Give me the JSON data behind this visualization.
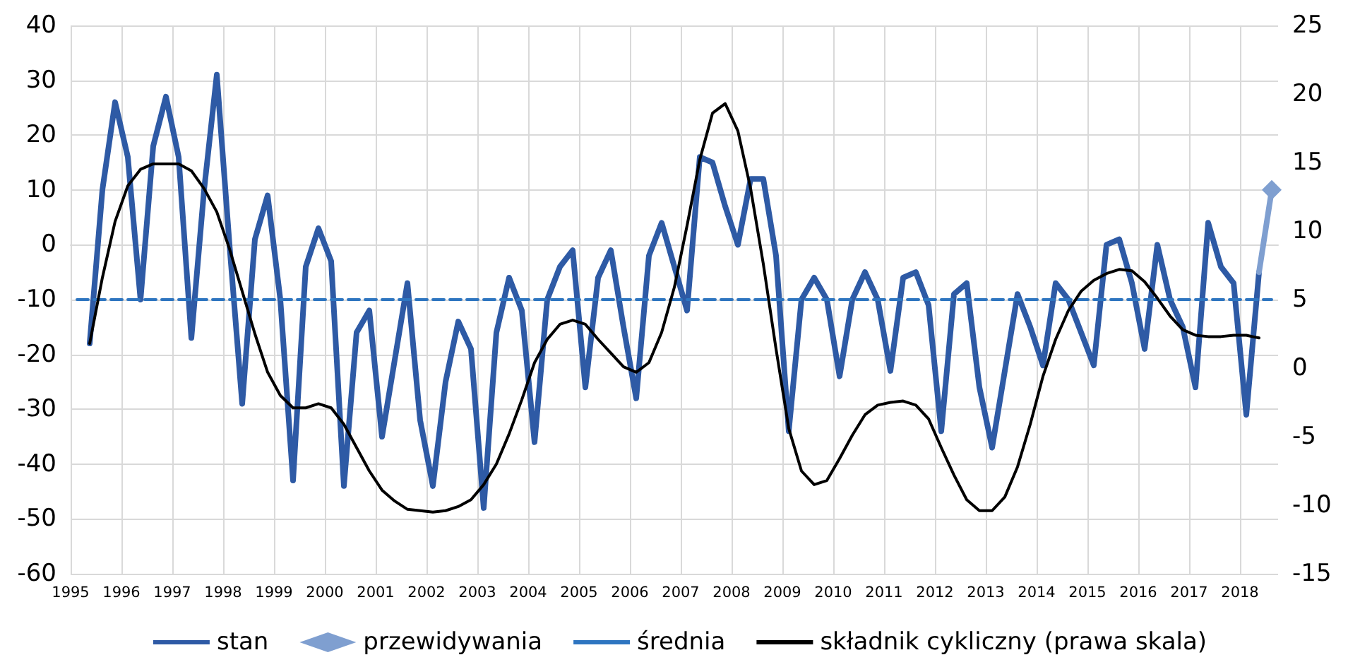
{
  "chart_data": {
    "type": "line",
    "x": [
      1995.375,
      1995.625,
      1995.875,
      1996.125,
      1996.375,
      1996.625,
      1996.875,
      1997.125,
      1997.375,
      1997.625,
      1997.875,
      1998.125,
      1998.375,
      1998.625,
      1998.875,
      1999.125,
      1999.375,
      1999.625,
      1999.875,
      2000.125,
      2000.375,
      2000.625,
      2000.875,
      2001.125,
      2001.375,
      2001.625,
      2001.875,
      2002.125,
      2002.375,
      2002.625,
      2002.875,
      2003.125,
      2003.375,
      2003.625,
      2003.875,
      2004.125,
      2004.375,
      2004.625,
      2004.875,
      2005.125,
      2005.375,
      2005.625,
      2005.875,
      2006.125,
      2006.375,
      2006.625,
      2006.875,
      2007.125,
      2007.375,
      2007.625,
      2007.875,
      2008.125,
      2008.375,
      2008.625,
      2008.875,
      2009.125,
      2009.375,
      2009.625,
      2009.875,
      2010.125,
      2010.375,
      2010.625,
      2010.875,
      2011.125,
      2011.375,
      2011.625,
      2011.875,
      2012.125,
      2012.375,
      2012.625,
      2012.875,
      2013.125,
      2013.375,
      2013.625,
      2013.875,
      2014.125,
      2014.375,
      2014.625,
      2014.875,
      2015.125,
      2015.375,
      2015.625,
      2015.875,
      2016.125,
      2016.375,
      2016.625,
      2016.875,
      2017.125,
      2017.375,
      2017.625,
      2017.875,
      2018.125,
      2018.375
    ],
    "series": [
      {
        "name": "stan",
        "color": "#2e5aa5",
        "marker": "none",
        "values": [
          -18,
          10,
          26,
          16,
          -10,
          18,
          27,
          16,
          -17,
          10,
          31,
          0,
          -29,
          1,
          9,
          -10,
          -43,
          -4,
          3,
          -3,
          -44,
          -16,
          -12,
          -35,
          -21,
          -7,
          -32,
          -44,
          -25,
          -14,
          -19,
          -48,
          -16,
          -6,
          -12,
          -36,
          -10,
          -4,
          -1,
          -26,
          -6,
          -1,
          -15,
          -28,
          -2,
          4,
          -4,
          -12,
          16,
          15,
          7,
          0,
          12,
          12,
          -2,
          -34,
          -10,
          -6,
          -10,
          -24,
          -10,
          -5,
          -10,
          -23,
          -6,
          -5,
          -11,
          -34,
          -9,
          -7,
          -26,
          -37,
          -23,
          -9,
          -15,
          -22,
          -7,
          -10,
          -16,
          -22,
          0,
          1,
          -7,
          -19,
          0,
          -10,
          -15,
          -26,
          4,
          -4,
          -7,
          -31,
          -5
        ]
      },
      {
        "name": "przewidywania",
        "color": "#7f9fd0",
        "marker": "diamond",
        "x": [
          2018.375,
          2018.625
        ],
        "values": [
          -5,
          10
        ]
      },
      {
        "name": "średnia",
        "color": "#2e75c0",
        "marker": "none",
        "line_style": "dashed",
        "x": [
          1995.125,
          2018.625
        ],
        "values": [
          -10,
          -10
        ]
      },
      {
        "name": "składnik cykliczny (prawa skala)",
        "color": "#000000",
        "marker": "none",
        "axis": "y2",
        "values": [
          1.8,
          6.6,
          10.7,
          13.3,
          14.5,
          14.9,
          14.9,
          14.9,
          14.4,
          13.1,
          11.4,
          8.7,
          5.6,
          2.5,
          -0.3,
          -2.0,
          -2.9,
          -2.9,
          -2.6,
          -2.9,
          -4.1,
          -5.8,
          -7.5,
          -8.9,
          -9.7,
          -10.3,
          -10.4,
          -10.5,
          -10.4,
          -10.1,
          -9.6,
          -8.5,
          -7.0,
          -4.8,
          -2.3,
          0.4,
          2.1,
          3.2,
          3.5,
          3.2,
          2.1,
          1.1,
          0.1,
          -0.3,
          0.4,
          2.6,
          5.9,
          10.4,
          15.2,
          18.6,
          19.3,
          17.3,
          13.1,
          7.6,
          1.4,
          -4.4,
          -7.5,
          -8.5,
          -8.2,
          -6.6,
          -4.9,
          -3.4,
          -2.7,
          -2.5,
          -2.4,
          -2.7,
          -3.7,
          -5.8,
          -7.8,
          -9.6,
          -10.4,
          -10.4,
          -9.4,
          -7.2,
          -4.1,
          -0.6,
          2.1,
          4.2,
          5.6,
          6.4,
          6.9,
          7.2,
          7.1,
          6.3,
          5.1,
          3.8,
          2.8,
          2.4,
          2.3,
          2.3,
          2.4,
          2.4,
          2.2
        ]
      }
    ],
    "xlim": [
      1995,
      2018.75
    ],
    "xticks": [
      1995,
      1996,
      1997,
      1998,
      1999,
      2000,
      2001,
      2002,
      2003,
      2004,
      2005,
      2006,
      2007,
      2008,
      2009,
      2010,
      2011,
      2012,
      2013,
      2014,
      2015,
      2016,
      2017,
      2018
    ],
    "ylim": [
      -60,
      40
    ],
    "yticks": [
      -60,
      -50,
      -40,
      -30,
      -20,
      -10,
      0,
      10,
      20,
      30,
      40
    ],
    "y2lim": [
      -15,
      25
    ],
    "y2ticks": [
      -15,
      -10,
      -5,
      0,
      5,
      10,
      15,
      20,
      25
    ],
    "grid": true,
    "legend": "bottom",
    "line_style": "solid"
  }
}
